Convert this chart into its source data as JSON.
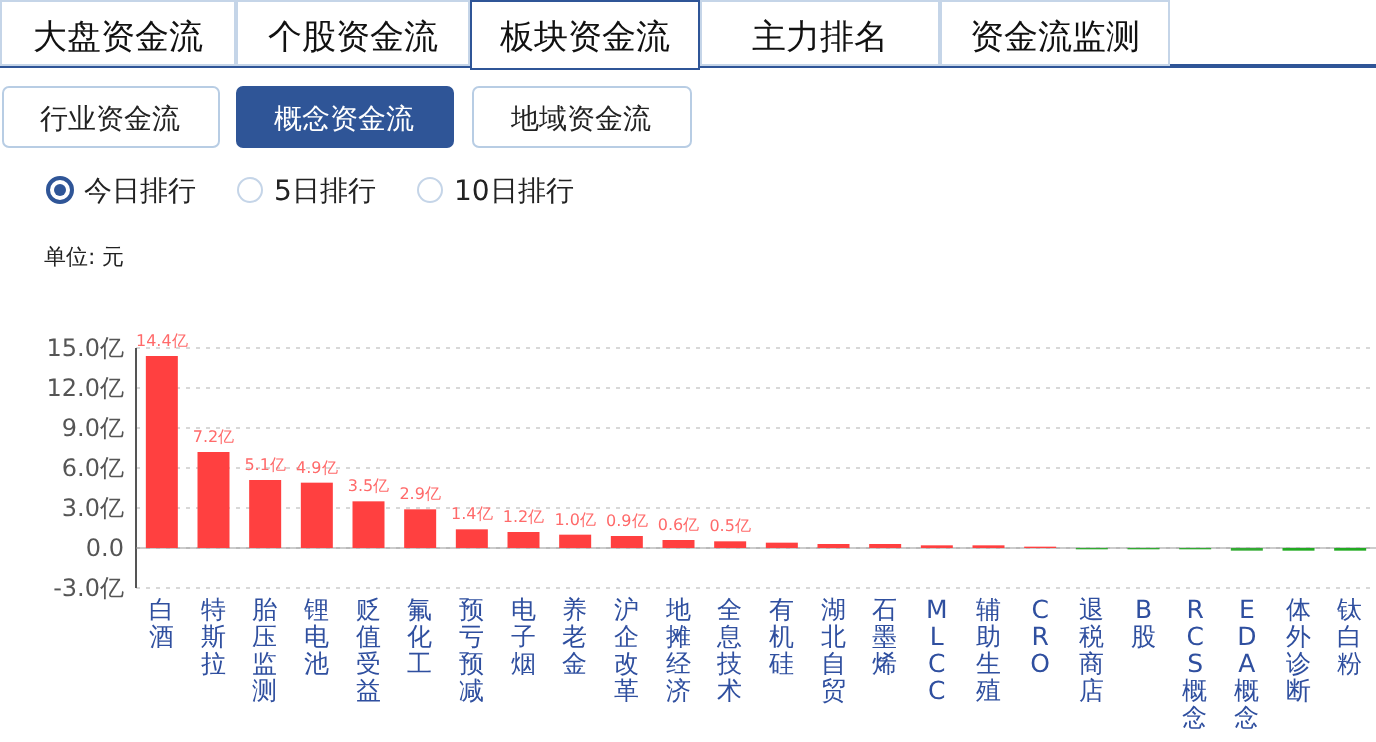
{
  "chart_data": {
    "type": "bar",
    "annotations": [
      "大盘资金流",
      "个股资金流",
      "板块资金流",
      "主力排名",
      "资金流监测",
      "行业资金流",
      "概念资金流",
      "地域资金流",
      "今日排行",
      "5日排行",
      "10日排行",
      "单位: 元"
    ],
    "categories": [
      "白酒",
      "特斯拉",
      "胎压监测",
      "锂电池",
      "贬值受益",
      "氟化工",
      "预亏预减",
      "电子烟",
      "养老金",
      "沪企改革",
      "地摊经济",
      "全息技术",
      "有机硅",
      "湖北自贸",
      "石墨烯",
      "MLCC",
      "辅助生殖",
      "CRO",
      "退税商店",
      "B股",
      "RCS概念",
      "EDA概念",
      "体外诊断",
      "钛白粉"
    ],
    "values": [
      14.4,
      7.2,
      5.1,
      4.9,
      3.5,
      2.9,
      1.4,
      1.2,
      1.0,
      0.9,
      0.6,
      0.5,
      0.4,
      0.3,
      0.3,
      0.2,
      0.2,
      0.1,
      -0.1,
      -0.1,
      -0.1,
      -0.2,
      -0.2,
      -0.2
    ],
    "colors": [
      "#ff4040",
      "#ff4040",
      "#ff4040",
      "#ff4040",
      "#ff4040",
      "#ff4040",
      "#ff4040",
      "#ff4040",
      "#ff4040",
      "#ff4040",
      "#ff4040",
      "#ff4040",
      "#ff4040",
      "#ff4040",
      "#ff4040",
      "#ff4040",
      "#ff4040",
      "#ff4040",
      "#33aa33",
      "#33aa33",
      "#33aa33",
      "#33aa33",
      "#22aa22",
      "#22aa22"
    ],
    "value_labels": [
      "14.4亿",
      "7.2亿",
      "5.1亿",
      "4.9亿",
      "3.5亿",
      "2.9亿",
      "1.4亿",
      "1.2亿",
      "1.0亿",
      "0.9亿",
      "0.6亿",
      "0.5亿",
      null,
      null,
      null,
      null,
      null,
      null,
      null,
      null,
      null,
      null,
      null,
      null
    ],
    "ylim": [
      -3,
      15
    ],
    "yticks": [
      {
        "value": -3,
        "label": "-3.0亿"
      },
      {
        "value": 0,
        "label": "0.0"
      },
      {
        "value": 3,
        "label": "3.0亿"
      },
      {
        "value": 6,
        "label": "6.0亿"
      },
      {
        "value": 9,
        "label": "9.0亿"
      },
      {
        "value": 12,
        "label": "12.0亿"
      },
      {
        "value": 15,
        "label": "15.0亿"
      }
    ],
    "grid": "y"
  }
}
